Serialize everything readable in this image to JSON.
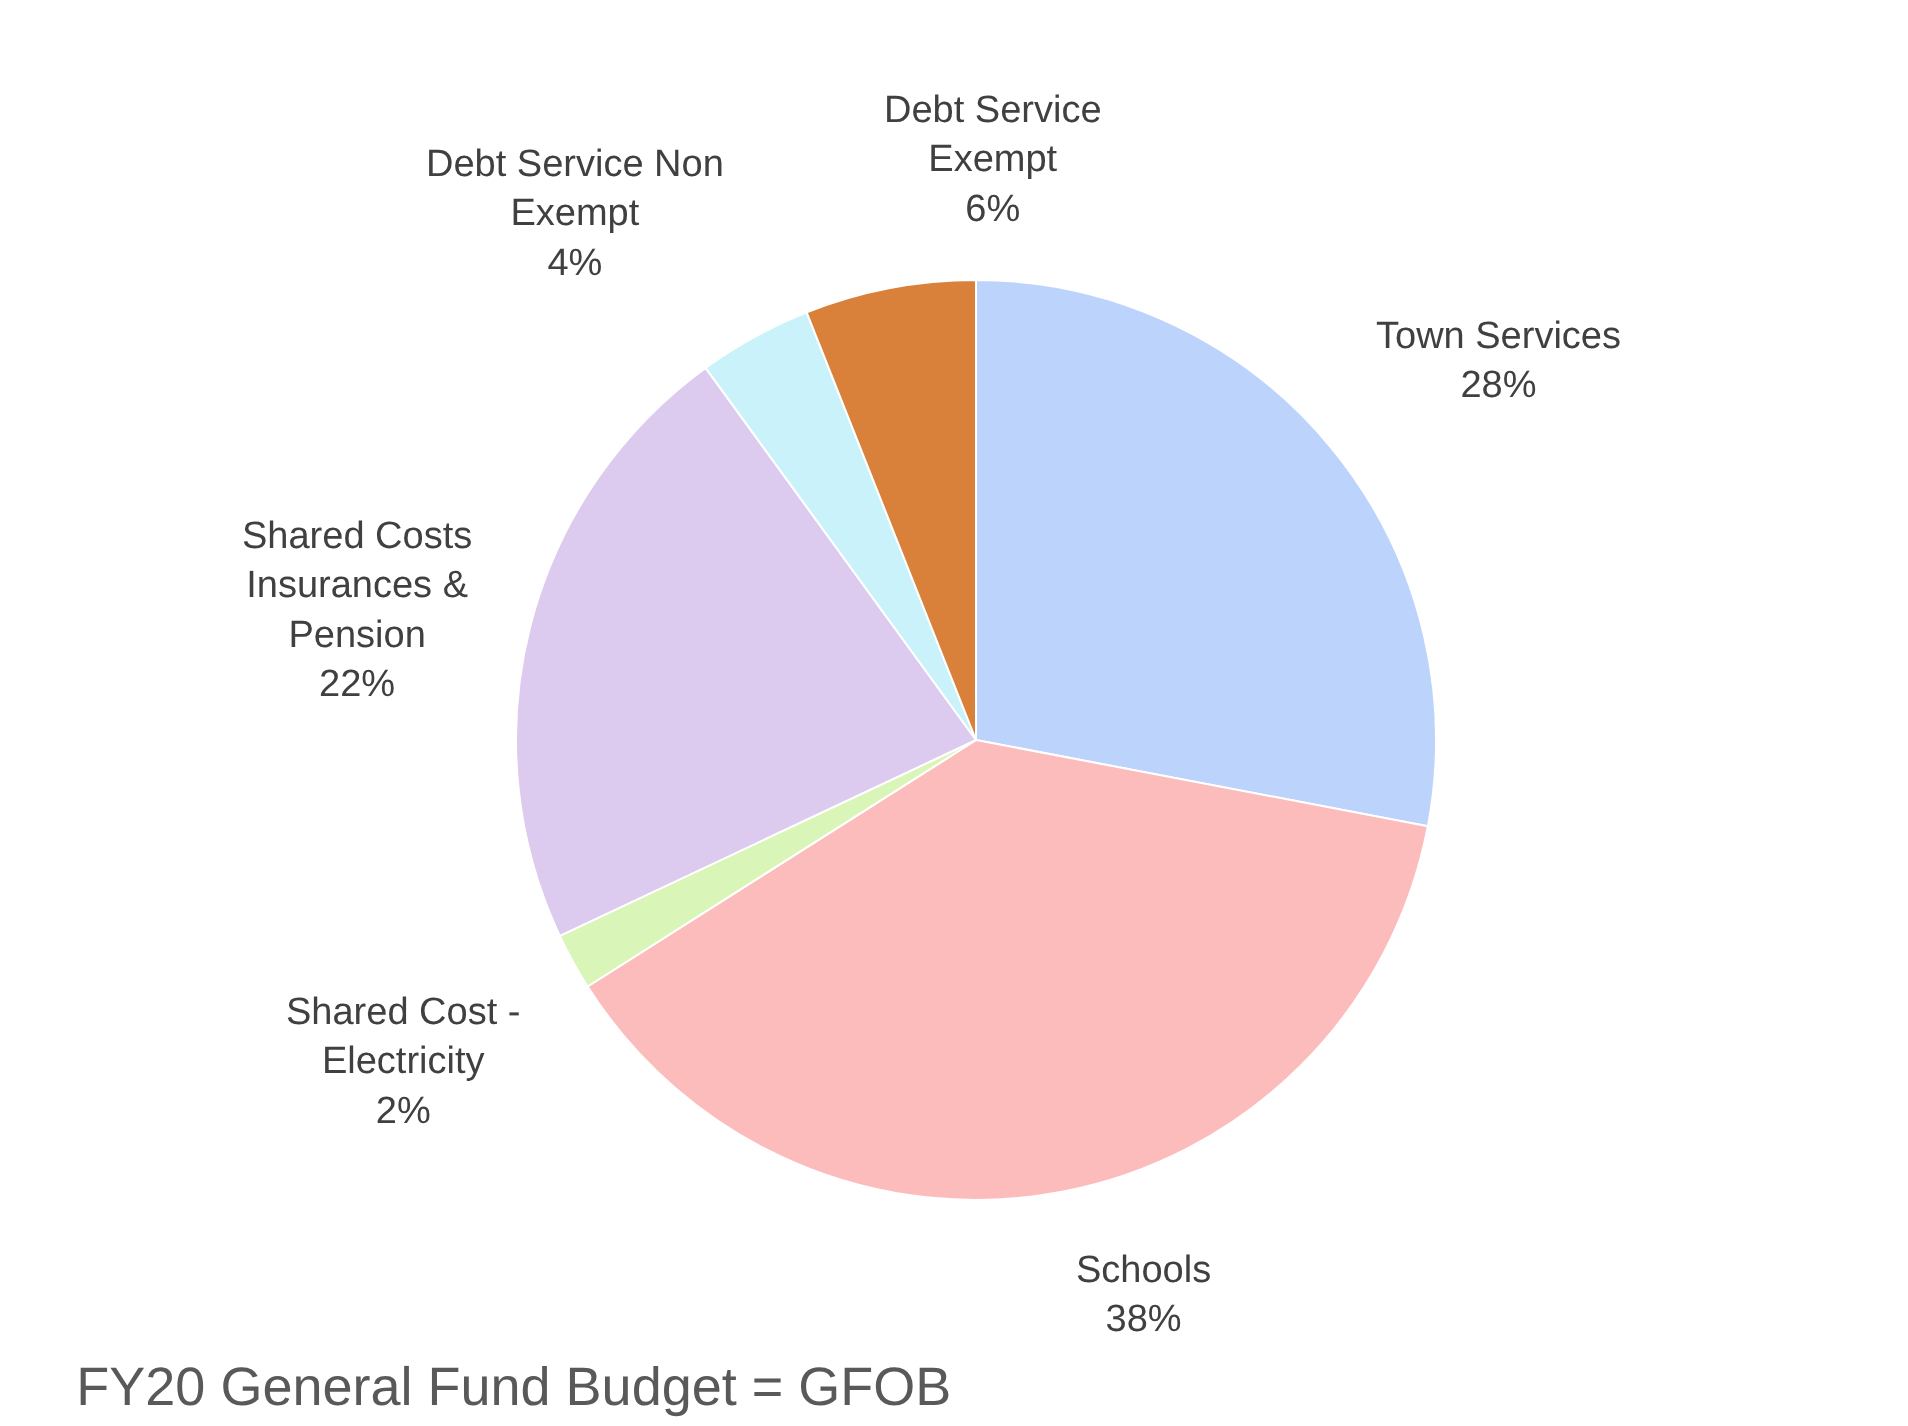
{
  "chart_data": {
    "type": "pie",
    "title": "FY20 General Fund Budget = GFOB",
    "categories": [
      "Town Services",
      "Schools",
      "Shared Cost - Electricity",
      "Shared Costs Insurances & Pension",
      "Debt Service Non Exempt",
      "Debt Service Exempt"
    ],
    "values": [
      28,
      38,
      2,
      22,
      4,
      6
    ],
    "value_labels": [
      "28%",
      "38%",
      "2%",
      "22%",
      "4%",
      "6%"
    ],
    "colors": [
      "#bcd3fb",
      "#fdbcbc",
      "#d9f5b8",
      "#dccbee",
      "#c9f2fb",
      "#d9813b"
    ],
    "legend": false
  }
}
